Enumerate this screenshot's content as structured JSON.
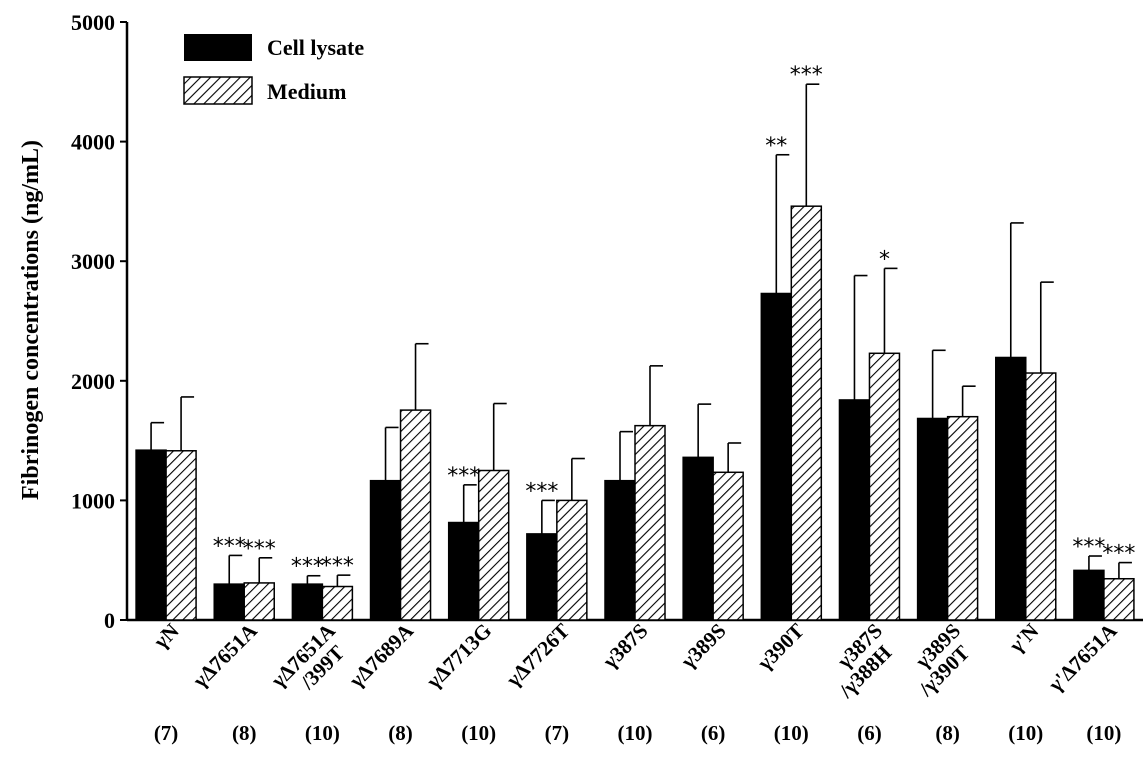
{
  "chart_data": {
    "type": "bar",
    "title": "",
    "ylabel": "Fibrinogen  concentrations (ng/mL)",
    "xlabel": "",
    "ylim": [
      0,
      5000
    ],
    "yticks": [
      0,
      1000,
      2000,
      3000,
      4000,
      5000
    ],
    "legend_position": "top-left",
    "grid": false,
    "categories": [
      {
        "label": "γN",
        "n": "(7)"
      },
      {
        "label": "γΔ7651A",
        "n": "(8)"
      },
      {
        "label": "γΔ7651A\n/399T",
        "n": "(10)"
      },
      {
        "label": "γΔ7689A",
        "n": "(8)"
      },
      {
        "label": "γΔ7713G",
        "n": "(10)"
      },
      {
        "label": "γΔ7726T",
        "n": "(7)"
      },
      {
        "label": "γ387S",
        "n": "(10)"
      },
      {
        "label": "γ389S",
        "n": "(6)"
      },
      {
        "label": "γ390T",
        "n": "(10)"
      },
      {
        "label": "γ387S\n/γ388H",
        "n": "(6)"
      },
      {
        "label": "γ389S\n/γ390T",
        "n": "(8)"
      },
      {
        "label": "γ'N",
        "n": "(10)"
      },
      {
        "label": "γ'Δ7651A",
        "n": "(10)"
      }
    ],
    "series": [
      {
        "name": "Cell lysate",
        "pattern": "solid",
        "color": "#000000",
        "values": [
          1420,
          300,
          300,
          1165,
          815,
          720,
          1165,
          1360,
          2730,
          1840,
          1685,
          2195,
          415
        ],
        "errors": [
          230,
          240,
          70,
          445,
          315,
          280,
          410,
          445,
          1160,
          1040,
          570,
          1125,
          120
        ],
        "significance": [
          "",
          "***",
          "***",
          "",
          "***",
          "***",
          "",
          "",
          "**",
          "",
          "",
          "",
          "***"
        ]
      },
      {
        "name": "Medium",
        "pattern": "hatched",
        "color": "#000000",
        "values": [
          1415,
          310,
          280,
          1755,
          1250,
          1000,
          1625,
          1235,
          3460,
          2230,
          1700,
          2065,
          345
        ],
        "errors": [
          450,
          210,
          95,
          555,
          560,
          350,
          500,
          245,
          1020,
          710,
          255,
          760,
          135
        ],
        "significance": [
          "",
          "***",
          "***",
          "",
          "",
          "",
          "",
          "",
          "***",
          "*",
          "",
          "",
          "***"
        ]
      }
    ]
  }
}
